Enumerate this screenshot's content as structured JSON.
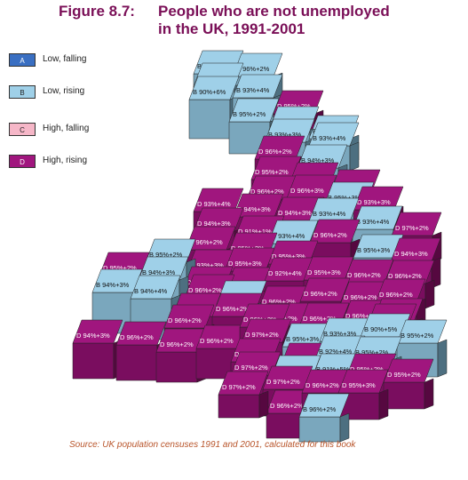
{
  "title": {
    "figure": "Figure 8.7:",
    "line1": "People who are not unemployed",
    "line2": "in the UK, 1991-2001"
  },
  "legend": [
    {
      "code": "A",
      "label": "Low, falling",
      "color": "#3a6fc2"
    },
    {
      "code": "B",
      "label": "Low, rising",
      "color": "#9fd0e8"
    },
    {
      "code": "C",
      "label": "High, falling",
      "color": "#f6b7c8"
    },
    {
      "code": "D",
      "label": "High, rising",
      "color": "#a0167e"
    }
  ],
  "source": "Source: UK population censuses 1991 and 2001, calculated for this book",
  "cells": [
    {
      "label": "B 95%+2%",
      "cat": "B"
    },
    {
      "label": "B 96%+2%",
      "cat": "B"
    },
    {
      "label": "B 94%+3%",
      "cat": "B"
    },
    {
      "label": "B 90%+6%",
      "cat": "B"
    },
    {
      "label": "B 93%+4%",
      "cat": "B"
    },
    {
      "label": "D 95%+2%",
      "cat": "D"
    },
    {
      "label": "B 95%+2%",
      "cat": "B"
    },
    {
      "label": "B 95%+3%",
      "cat": "B"
    },
    {
      "label": "B 93%+4%",
      "cat": "B"
    },
    {
      "label": "B 93%+3%",
      "cat": "B"
    },
    {
      "label": "B 93%+4%",
      "cat": "B"
    },
    {
      "label": "D 96%+2%",
      "cat": "D"
    },
    {
      "label": "B 94%+3%",
      "cat": "B"
    },
    {
      "label": "D 95%+2%",
      "cat": "D"
    },
    {
      "label": "D 94%+3%",
      "cat": "D"
    },
    {
      "label": "D 93%+3%",
      "cat": "D"
    },
    {
      "label": "D 96%+2%",
      "cat": "D"
    },
    {
      "label": "D 96%+3%",
      "cat": "D"
    },
    {
      "label": "B 95%+3%",
      "cat": "B"
    },
    {
      "label": "D 93%+3%",
      "cat": "D"
    },
    {
      "label": "D 93%+4%",
      "cat": "D"
    },
    {
      "label": "D 94%+3%",
      "cat": "D"
    },
    {
      "label": "D 94%+3%",
      "cat": "D"
    },
    {
      "label": "B 93%+4%",
      "cat": "B"
    },
    {
      "label": "B 93%+4%",
      "cat": "B"
    },
    {
      "label": "D 97%+2%",
      "cat": "D"
    },
    {
      "label": "D 94%+3%",
      "cat": "D"
    },
    {
      "label": "D 91%+1%",
      "cat": "D"
    },
    {
      "label": "B 93%+4%",
      "cat": "B"
    },
    {
      "label": "D 96%+2%",
      "cat": "D"
    },
    {
      "label": "B 95%+3%",
      "cat": "B"
    },
    {
      "label": "D 94%+3%",
      "cat": "D"
    },
    {
      "label": "D 96%+2%",
      "cat": "D"
    },
    {
      "label": "D 95%+2%",
      "cat": "D"
    },
    {
      "label": "D 95%+3%",
      "cat": "D"
    },
    {
      "label": "D 93%+3%",
      "cat": "D"
    },
    {
      "label": "D 95%+3%",
      "cat": "D"
    },
    {
      "label": "B 95%+2%",
      "cat": "B"
    },
    {
      "label": "D 94%+3%",
      "cat": "D"
    },
    {
      "label": "D 93%+3%",
      "cat": "D"
    },
    {
      "label": "D 92%+4%",
      "cat": "D"
    },
    {
      "label": "D 95%+3%",
      "cat": "D"
    },
    {
      "label": "D 96%+2%",
      "cat": "D"
    },
    {
      "label": "D 96%+2%",
      "cat": "D"
    },
    {
      "label": "D 95%+2%",
      "cat": "D"
    },
    {
      "label": "B 94%+3%",
      "cat": "B"
    },
    {
      "label": "B 94%+3%",
      "cat": "B"
    },
    {
      "label": "B 94%+4%",
      "cat": "B"
    },
    {
      "label": "D 96%+2%",
      "cat": "D"
    },
    {
      "label": "D 95%+3%",
      "cat": "D"
    },
    {
      "label": "B 95%+3%",
      "cat": "B"
    },
    {
      "label": "D 96%+2%",
      "cat": "D"
    },
    {
      "label": "D 96%+2%",
      "cat": "D"
    },
    {
      "label": "D 96%+2%",
      "cat": "D"
    },
    {
      "label": "D 96%+2%",
      "cat": "D"
    },
    {
      "label": "D 96%+2%",
      "cat": "D"
    },
    {
      "label": "D 97%+2%",
      "cat": "D"
    },
    {
      "label": "D 96%+2%",
      "cat": "D"
    },
    {
      "label": "D 96%+2%",
      "cat": "D"
    },
    {
      "label": "D 97%+2%",
      "cat": "D"
    },
    {
      "label": "D 96%+2%",
      "cat": "D"
    },
    {
      "label": "D96%+2%",
      "cat": "D"
    },
    {
      "label": "D 94%+3%",
      "cat": "D"
    },
    {
      "label": "D 96%+2%",
      "cat": "D"
    },
    {
      "label": "D 96%+2%",
      "cat": "D"
    },
    {
      "label": "D 96%+2%",
      "cat": "D"
    },
    {
      "label": "D 96%+2%",
      "cat": "D"
    },
    {
      "label": "D 97%+2%",
      "cat": "D"
    },
    {
      "label": "B 95%+3%",
      "cat": "B"
    },
    {
      "label": "B 93%+3%",
      "cat": "B"
    },
    {
      "label": "B 90%+5%",
      "cat": "B"
    },
    {
      "label": "B 95%+2%",
      "cat": "B"
    },
    {
      "label": "D 96%+2%",
      "cat": "D"
    },
    {
      "label": "D 95%+3%",
      "cat": "D"
    },
    {
      "label": "B 92%+4%",
      "cat": "B"
    },
    {
      "label": "B 95%+2%",
      "cat": "B"
    },
    {
      "label": "D 97%+2%",
      "cat": "D"
    },
    {
      "label": "B 94%+3%",
      "cat": "B"
    },
    {
      "label": "B 91%+5%",
      "cat": "B"
    },
    {
      "label": "D 95%+2%",
      "cat": "D"
    },
    {
      "label": "D 95%+2%",
      "cat": "D"
    },
    {
      "label": "D 97%+2%",
      "cat": "D"
    },
    {
      "label": "D 96%+2%",
      "cat": "D"
    },
    {
      "label": "D 96%+2%",
      "cat": "D"
    },
    {
      "label": "D 95%+3%",
      "cat": "D"
    },
    {
      "label": "D 97%+2%",
      "cat": "D"
    },
    {
      "label": "B 96%+2%",
      "cat": "B"
    }
  ]
}
